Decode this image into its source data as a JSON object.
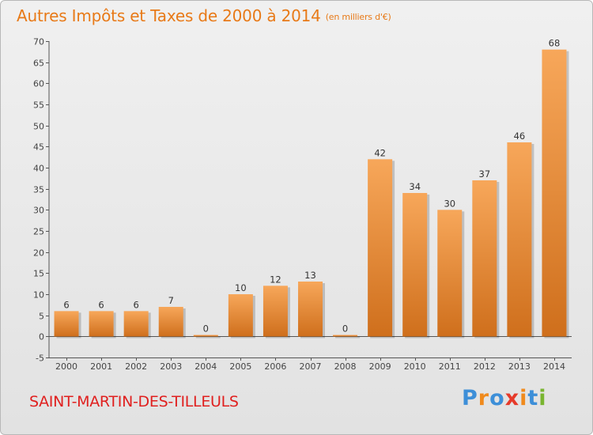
{
  "header": {
    "title": "Autres Impôts et Taxes de 2000 à 2014",
    "unit": "(en milliers d'€)"
  },
  "footer": {
    "commune": "SAINT-MARTIN-DES-TILLEULS",
    "logo_letters": [
      {
        "ch": "P",
        "color": "#3d8fd8"
      },
      {
        "ch": "r",
        "color": "#f08a1c"
      },
      {
        "ch": "o",
        "color": "#3d8fd8"
      },
      {
        "ch": "x",
        "color": "#e63a2a"
      },
      {
        "ch": "i",
        "color": "#f08a1c"
      },
      {
        "ch": "t",
        "color": "#3d8fd8"
      },
      {
        "ch": "i",
        "color": "#79b530"
      }
    ]
  },
  "colors": {
    "title": "#e87a18",
    "commune": "#e0201f",
    "bar_light": "#f7a75a",
    "bar_dark": "#cf6f1c",
    "axis": "#555555",
    "gridline": "#cccccc"
  },
  "chart_data": {
    "type": "bar",
    "title": "Autres Impôts et Taxes de 2000 à 2014",
    "subtitle": "(en milliers d'€)",
    "categories": [
      "2000",
      "2001",
      "2002",
      "2003",
      "2004",
      "2005",
      "2006",
      "2007",
      "2008",
      "2009",
      "2010",
      "2011",
      "2012",
      "2013",
      "2014"
    ],
    "values": [
      6,
      6,
      6,
      7,
      0,
      10,
      12,
      13,
      0,
      42,
      34,
      30,
      37,
      46,
      68
    ],
    "data_labels": [
      "6",
      "6",
      "6",
      "7",
      "0",
      "10",
      "12",
      "13",
      "0",
      "42",
      "34",
      "30",
      "37",
      "46",
      "68"
    ],
    "ylim": [
      -5,
      70
    ],
    "yticks": [
      -5,
      0,
      5,
      10,
      15,
      20,
      25,
      30,
      35,
      40,
      45,
      50,
      55,
      60,
      65,
      70
    ],
    "xlabel": "",
    "ylabel": "",
    "grid": false,
    "legend": "none"
  }
}
